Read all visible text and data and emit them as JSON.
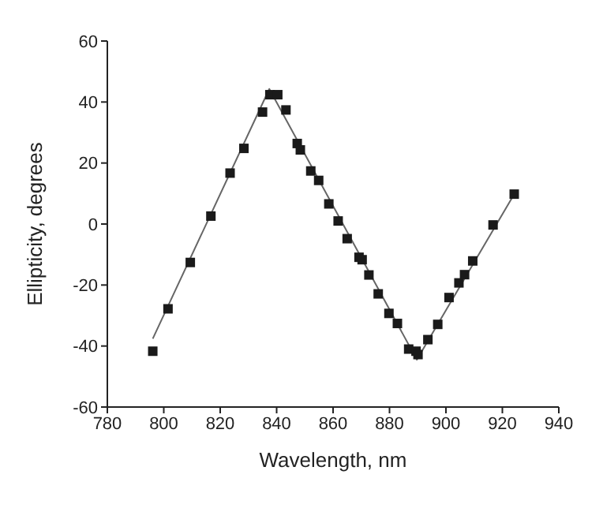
{
  "chart_data": {
    "type": "scatter",
    "xlabel": "Wavelength, nm",
    "ylabel": "Ellipticity, degrees",
    "xlim": [
      780,
      940
    ],
    "xticks": [
      780,
      800,
      820,
      840,
      860,
      880,
      900,
      920,
      940
    ],
    "ylim": [
      -60,
      60
    ],
    "yticks": [
      -60,
      -40,
      -20,
      0,
      20,
      40,
      60
    ],
    "grid": false,
    "series": [
      {
        "marker": "square",
        "color": "#1a1a1a",
        "x": [
          796.1,
          801.5,
          809.4,
          816.7,
          823.5,
          828.4,
          835.0,
          837.6,
          840.4,
          843.3,
          847.3,
          848.4,
          852.1,
          854.9,
          858.5,
          861.8,
          865.0,
          869.2,
          870.3,
          872.7,
          876.0,
          879.8,
          882.8,
          886.8,
          889.4,
          890.1,
          893.6,
          897.1,
          901.1,
          904.6,
          906.6,
          909.5,
          916.7,
          924.2
        ],
        "values": [
          -41.7,
          -27.8,
          -12.6,
          2.6,
          16.7,
          24.8,
          36.7,
          42.4,
          42.4,
          37.4,
          26.4,
          24.3,
          17.4,
          14.3,
          6.6,
          1.0,
          -4.8,
          -10.9,
          -11.7,
          -16.7,
          -22.9,
          -29.3,
          -32.6,
          -41.0,
          -41.7,
          -42.8,
          -37.9,
          -32.9,
          -24.1,
          -19.3,
          -16.6,
          -12.1,
          -0.3,
          9.8
        ]
      },
      {
        "type": "line",
        "marker": "none",
        "color": "#666666",
        "x": [
          796.1,
          837.4,
          889.7,
          924.2
        ],
        "values": [
          -37.6,
          44.3,
          -44.5,
          9.8
        ]
      }
    ]
  }
}
